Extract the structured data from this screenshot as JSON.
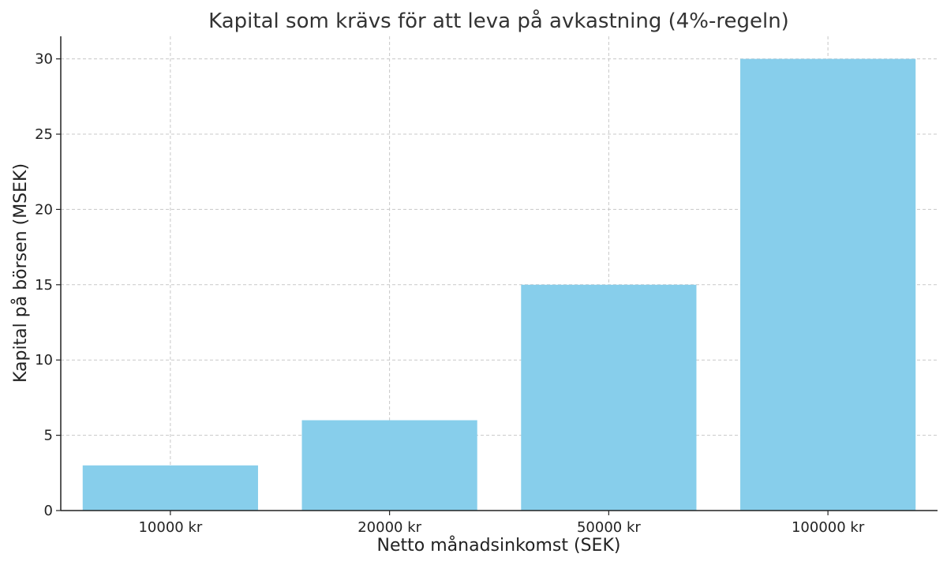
{
  "chart_data": {
    "type": "bar",
    "title": "Kapital som krävs för att leva på avkastning (4%-regeln)",
    "xlabel": "Netto månadsinkomst (SEK)",
    "ylabel": "Kapital på börsen (MSEK)",
    "categories": [
      "10000 kr",
      "20000 kr",
      "50000 kr",
      "100000 kr"
    ],
    "values": [
      3,
      6,
      15,
      30
    ],
    "ylim": [
      0,
      31.5
    ],
    "yticks": [
      0,
      5,
      10,
      15,
      20,
      25,
      30
    ],
    "grid": true,
    "bar_color": "#87ceeb",
    "axis_color": "#222222",
    "grid_color": "#c8c8c8"
  }
}
